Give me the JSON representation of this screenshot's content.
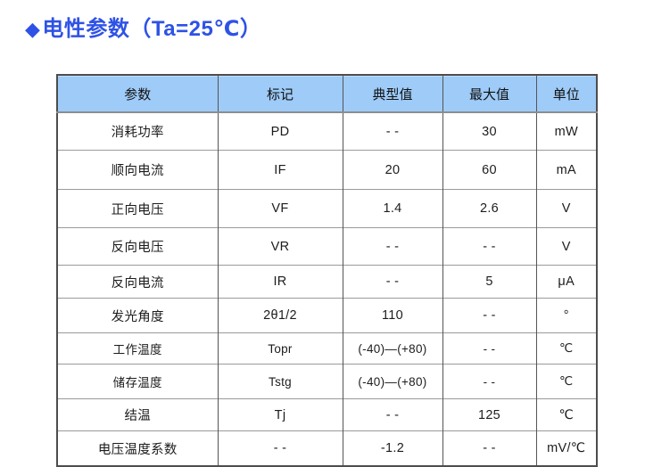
{
  "header": {
    "diamond": "◆",
    "title": "电性参数（Ta=25℃）"
  },
  "colors": {
    "title_blue": "#2e52e6",
    "header_bg": "#9ecbf8"
  },
  "table": {
    "columns": [
      "参数",
      "标记",
      "典型值",
      "最大值",
      "单位"
    ],
    "rows": [
      [
        "消耗功率",
        "PD",
        "- -",
        "30",
        "mW"
      ],
      [
        "顺向电流",
        "IF",
        "20",
        "60",
        "mA"
      ],
      [
        "正向电压",
        "VF",
        "1.4",
        "2.6",
        "V"
      ],
      [
        "反向电压",
        "VR",
        "- -",
        "- -",
        "V"
      ],
      [
        "反向电流",
        "IR",
        "- -",
        "5",
        "μA"
      ],
      [
        "发光角度",
        "2θ1/2",
        "110",
        "- -",
        "°"
      ],
      [
        "工作温度",
        "Topr",
        "(-40)—(+80)",
        "- -",
        "℃"
      ],
      [
        "储存温度",
        "Tstg",
        "(-40)—(+80)",
        "- -",
        "℃"
      ],
      [
        "结温",
        "Tj",
        "- -",
        "125",
        "℃"
      ],
      [
        "电压温度系数",
        "- -",
        "-1.2",
        "- -",
        "mV/℃"
      ]
    ]
  }
}
